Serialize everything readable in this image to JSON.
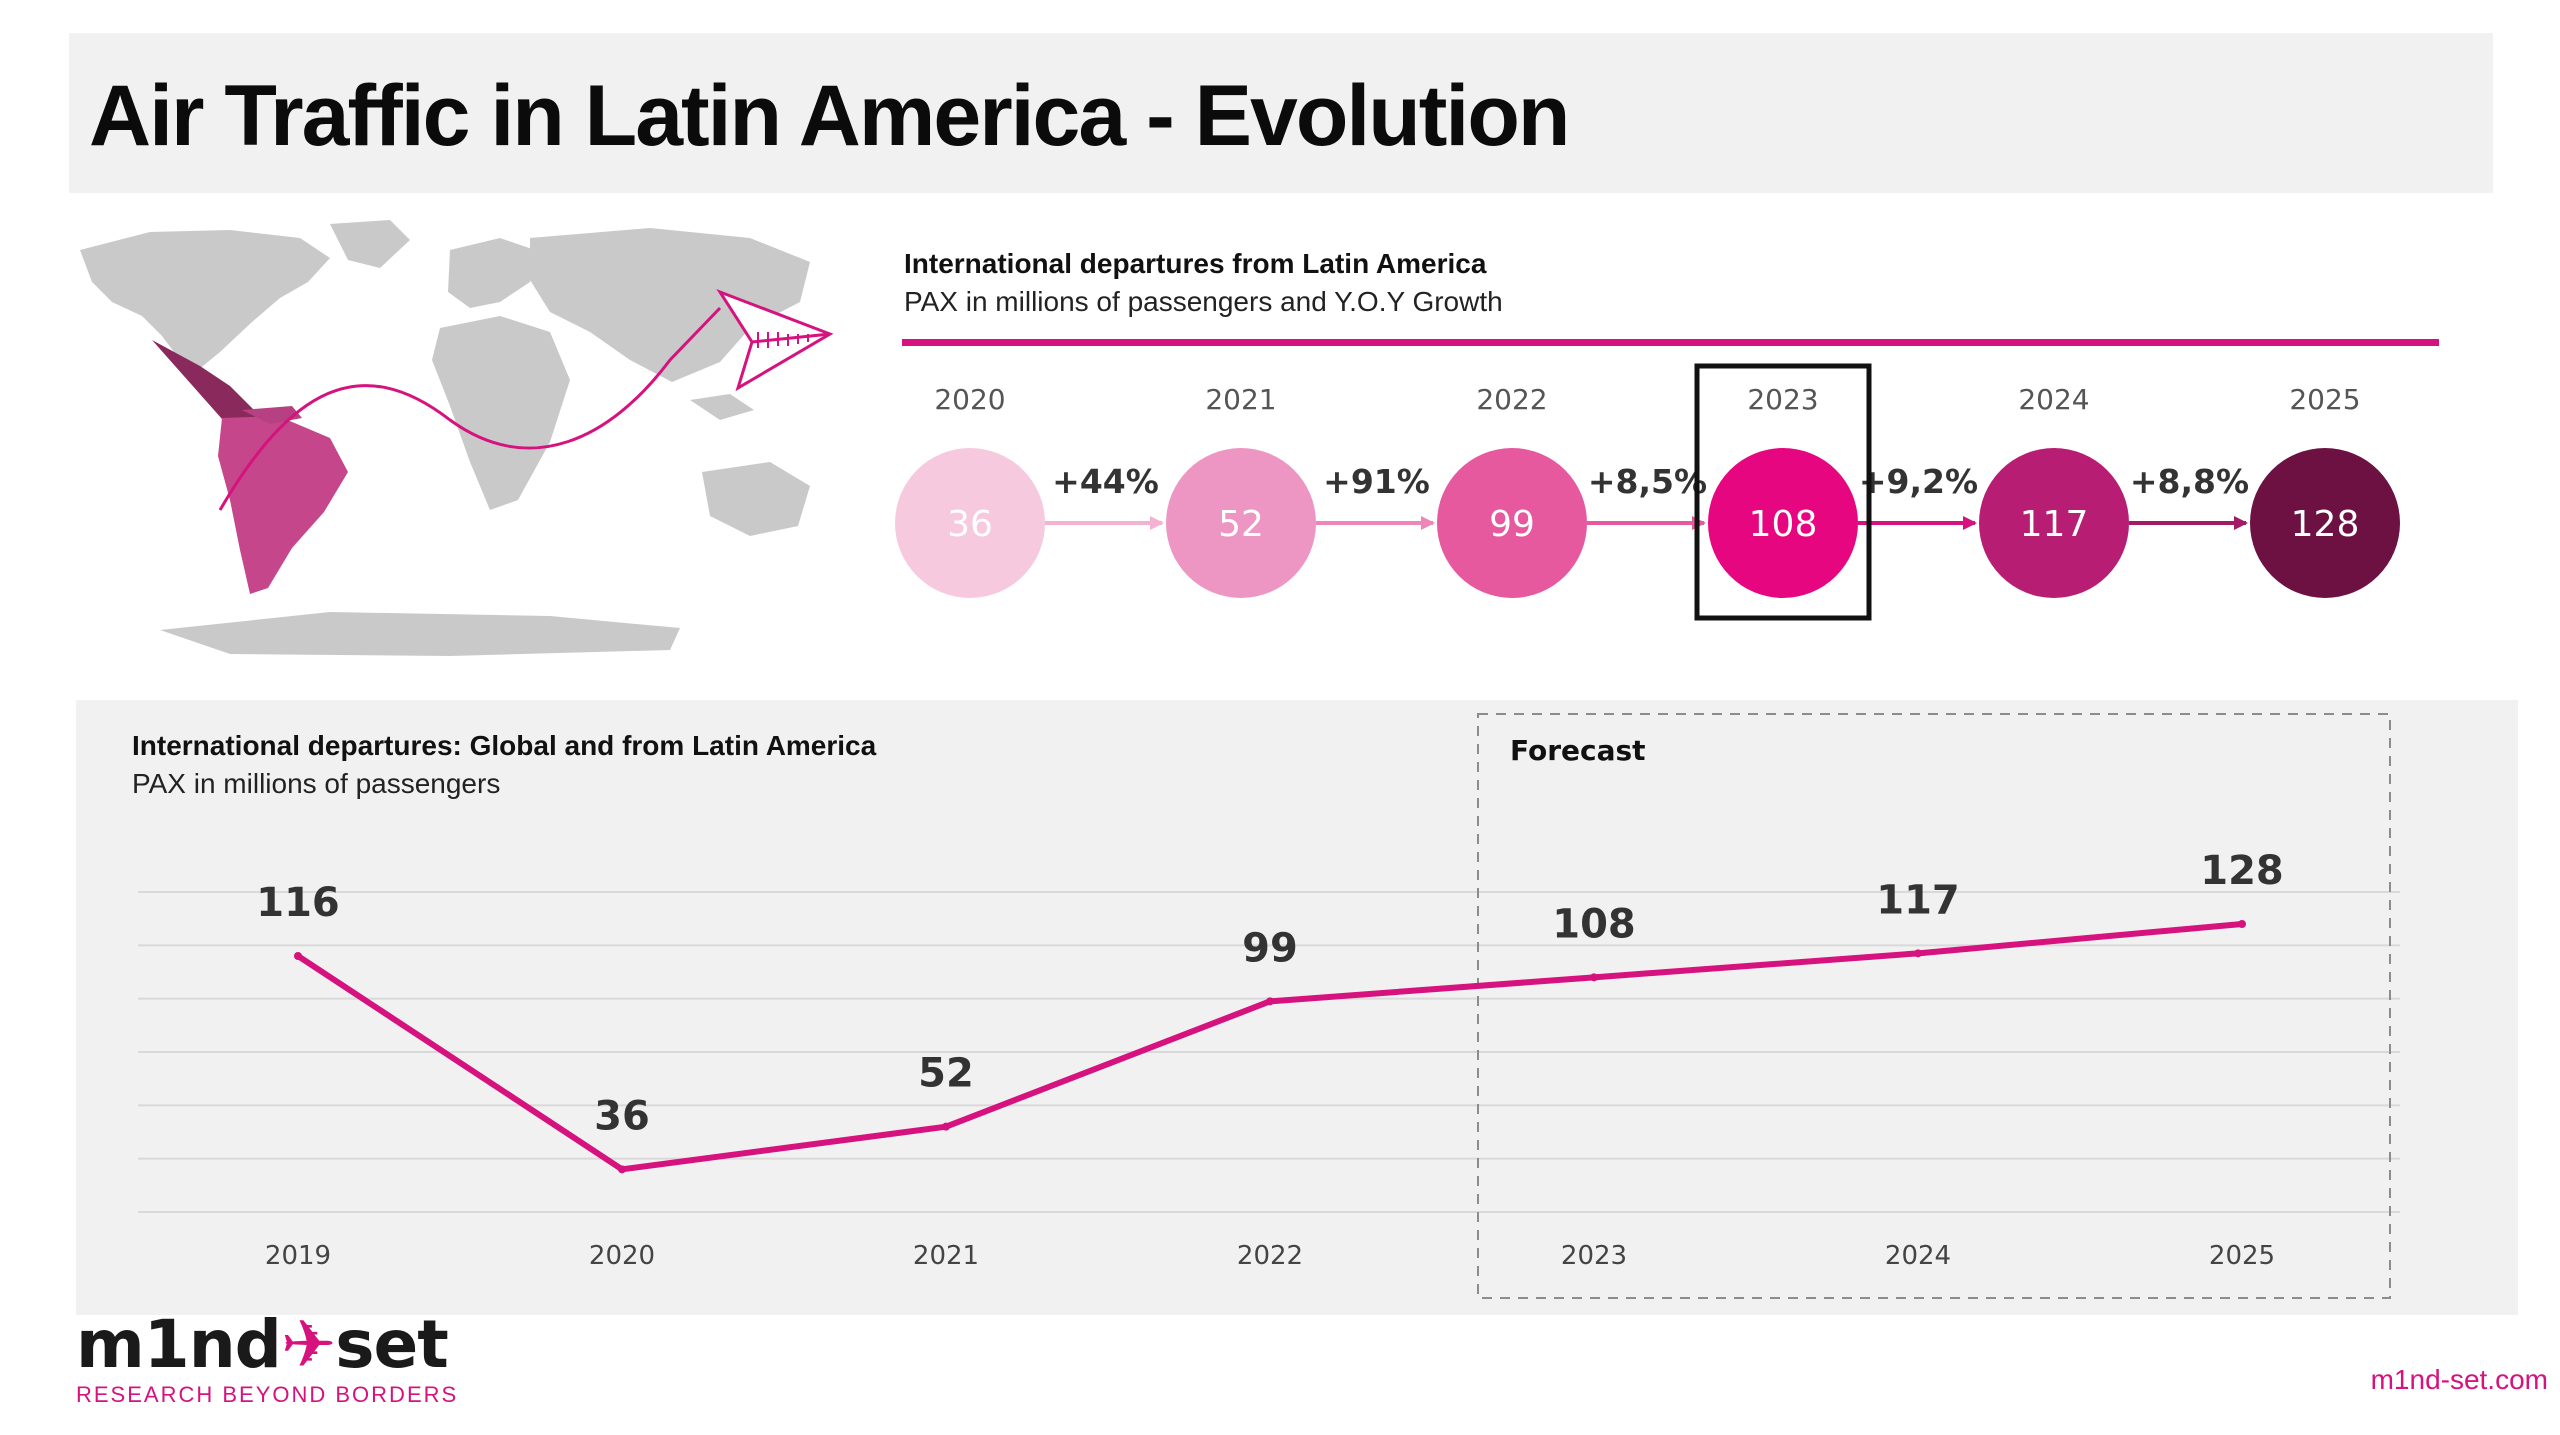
{
  "page": {
    "title": "Air Traffic in Latin America - Evolution"
  },
  "colors": {
    "accent": "#d5127d",
    "panel": "#f1f1f1",
    "bubbles": [
      "#f6c9df",
      "#ee96c3",
      "#e6599f",
      "#e6067f",
      "#b71d72",
      "#6d1142"
    ]
  },
  "top_chart": {
    "title": "International departures from Latin America",
    "subtitle": "PAX in millions of passengers and Y.O.Y Growth"
  },
  "bottom_chart": {
    "title": "International departures: Global and from Latin America",
    "subtitle": "PAX in millions of passengers",
    "forecast_label": "Forecast"
  },
  "map": {
    "icon": "world-map-latin-america-highlight"
  },
  "footer": {
    "logo_main": "m1nd",
    "logo_accent": "set",
    "tagline": "RESEARCH BEYOND BORDERS",
    "site": "m1nd-set.com"
  },
  "chart_data": [
    {
      "type": "bubble-sequence",
      "title": "International departures from Latin America",
      "subtitle": "PAX in millions of passengers and Y.O.Y Growth",
      "categories": [
        "2020",
        "2021",
        "2022",
        "2023",
        "2024",
        "2025"
      ],
      "values": [
        36,
        52,
        99,
        108,
        117,
        128
      ],
      "value_labels": [
        "36",
        "52",
        "99",
        "108",
        "117",
        "128"
      ],
      "growth": [
        "+44%",
        "+91%",
        "+8,5%",
        "+9,2%",
        "+8,8%"
      ],
      "highlighted": "2023"
    },
    {
      "type": "line",
      "title": "International departures: Global and from Latin America",
      "subtitle": "PAX in millions of passengers",
      "x": [
        "2019",
        "2020",
        "2021",
        "2022",
        "2023",
        "2024",
        "2025"
      ],
      "values": [
        116,
        36,
        52,
        99,
        108,
        117,
        128
      ],
      "value_labels": [
        "116",
        "36",
        "52",
        "99",
        "108",
        "117",
        "128"
      ],
      "forecast_from": "2023",
      "forecast_label": "Forecast",
      "ylim": [
        20,
        140
      ],
      "grid": true,
      "legend": "none"
    }
  ]
}
